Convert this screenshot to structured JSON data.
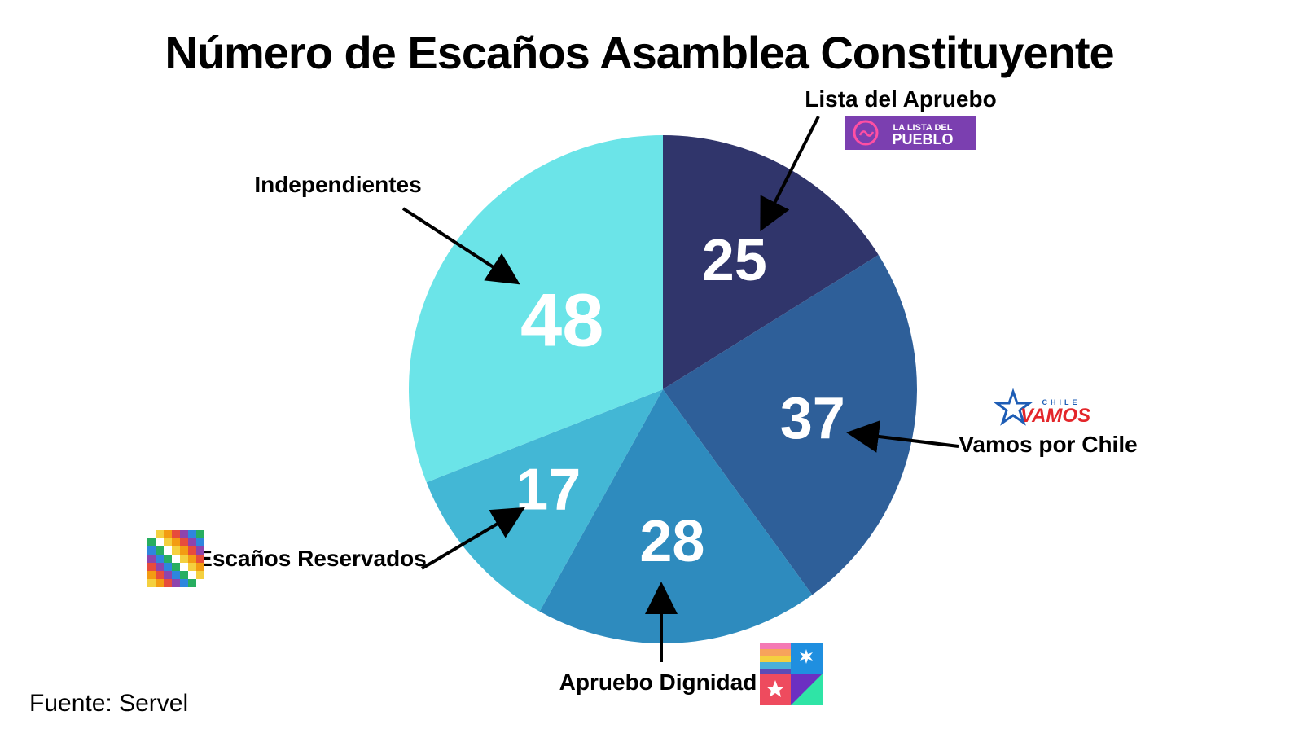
{
  "chart_data": {
    "type": "pie",
    "title": "Número de Escaños Asamblea Constituyente",
    "start_angle_deg": 0,
    "direction": "clockwise",
    "slices": [
      {
        "label": "Lista del Apruebo",
        "value": 25,
        "color": "#30356b",
        "logo": "lista-del-pueblo-logo"
      },
      {
        "label": "Vamos por Chile",
        "value": 37,
        "color": "#2e5f99",
        "logo": "chile-vamos-logo"
      },
      {
        "label": "Apruebo Dignidad",
        "value": 28,
        "color": "#2e8bbe",
        "logo": "apruebo-dignidad-logo"
      },
      {
        "label": "Escaños Reservados",
        "value": 17,
        "color": "#43b7d5",
        "logo": "wiphala-flag-logo"
      },
      {
        "label": "Independientes",
        "value": 48,
        "color": "#6be4e8",
        "logo": null
      }
    ],
    "source": "Fuente: Servel"
  },
  "logos": {
    "lista_del_pueblo": {
      "line1": "LA LISTA DEL",
      "line2": "PUEBLO",
      "color": "#7b3fb0"
    },
    "chile_vamos": {
      "small": "CHILE",
      "big": "VAMOS",
      "color": "#e3262a",
      "accent": "#1e5db5"
    }
  }
}
